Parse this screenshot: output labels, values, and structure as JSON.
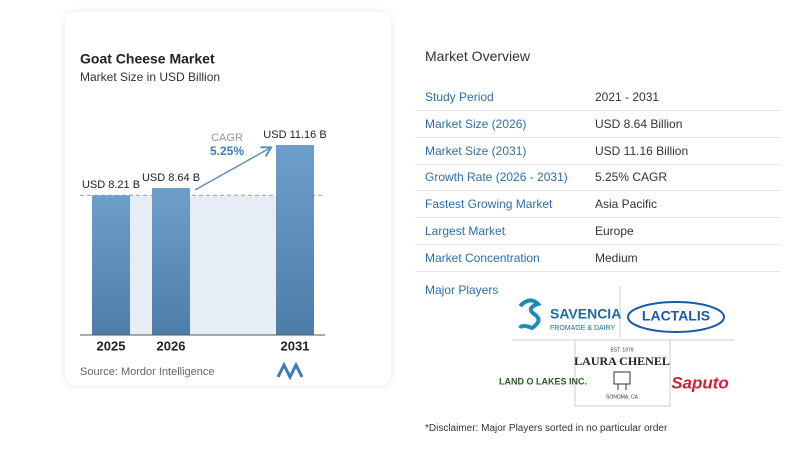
{
  "chart_data": {
    "type": "bar",
    "title": "Goat Cheese Market",
    "subtitle": "Market Size in USD Billion",
    "categories": [
      "2025",
      "2026",
      "2031"
    ],
    "values": [
      8.21,
      8.64,
      11.16
    ],
    "value_labels": [
      "USD 8.21 B",
      "USD 8.64 B",
      "USD 11.16 B"
    ],
    "color": "#5b8dbb",
    "cagr_title": "CAGR",
    "cagr": {
      "value": 5.25,
      "label": "5.25%"
    },
    "source": "Source: Mordor Intelligence"
  },
  "overview": {
    "title": "Market Overview",
    "rows": [
      [
        "Study Period",
        "2021 - 2031"
      ],
      [
        "Market Size (2026)",
        "USD 8.64 Billion"
      ],
      [
        "Market Size (2031)",
        "USD 11.16 Billion"
      ],
      [
        "Growth Rate (2026 - 2031)",
        "5.25% CAGR"
      ],
      [
        "Fastest Growing Market",
        "Asia Pacific"
      ],
      [
        "Largest Market",
        "Europe"
      ],
      [
        "Market Concentration",
        "Medium"
      ]
    ],
    "players_title": "Major Players",
    "players": {
      "savencia": [
        "SAVENCIA",
        "FROMAGE & DAIRY"
      ],
      "lactalis": "LACTALIS",
      "landolakes": "LAND O LAKES INC.",
      "laurachenel": [
        "EST. 1979",
        "LAURA CHENEL",
        "SONOMA, CA"
      ],
      "saputo": "Saputo"
    },
    "disclaimer": "*Disclaimer: Major Players sorted in no particular order"
  }
}
